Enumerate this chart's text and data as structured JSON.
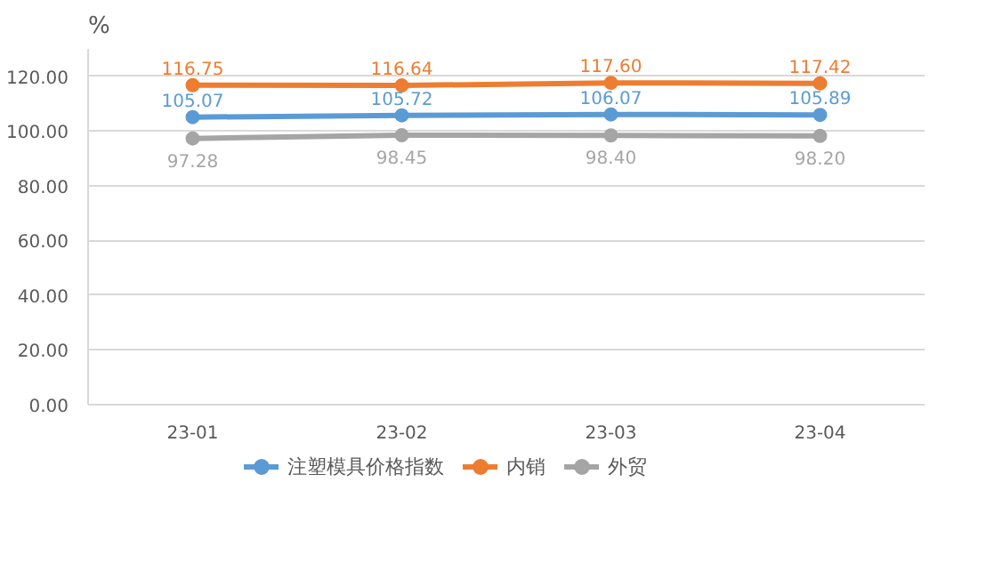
{
  "chart_data": {
    "type": "line",
    "ylabel": "%",
    "categories": [
      "23-01",
      "23-02",
      "23-03",
      "23-04"
    ],
    "series": [
      {
        "name": "注塑模具价格指数",
        "color": "#5b9bd5",
        "values": [
          105.07,
          105.72,
          106.07,
          105.89
        ],
        "value_labels": [
          "105.07",
          "105.72",
          "106.07",
          "105.89"
        ]
      },
      {
        "name": "内销",
        "color": "#ed7d31",
        "values": [
          116.75,
          116.64,
          117.6,
          117.42
        ],
        "value_labels": [
          "116.75",
          "116.64",
          "117.60",
          "117.42"
        ]
      },
      {
        "name": "外贸",
        "color": "#a5a5a5",
        "values": [
          97.28,
          98.45,
          98.4,
          98.2
        ],
        "value_labels": [
          "97.28",
          "98.45",
          "98.40",
          "98.20"
        ]
      }
    ],
    "ylim": [
      0,
      130
    ],
    "yticks": [
      {
        "value": 0,
        "label": "0.00"
      },
      {
        "value": 20,
        "label": "20.00"
      },
      {
        "value": 40,
        "label": "40.00"
      },
      {
        "value": 60,
        "label": "60.00"
      },
      {
        "value": 80,
        "label": "80.00"
      },
      {
        "value": 100,
        "label": "100.00"
      },
      {
        "value": 120,
        "label": "120.00"
      }
    ],
    "grid": "y",
    "legend": "bottom",
    "marker": "circle",
    "line_style": "solid"
  }
}
